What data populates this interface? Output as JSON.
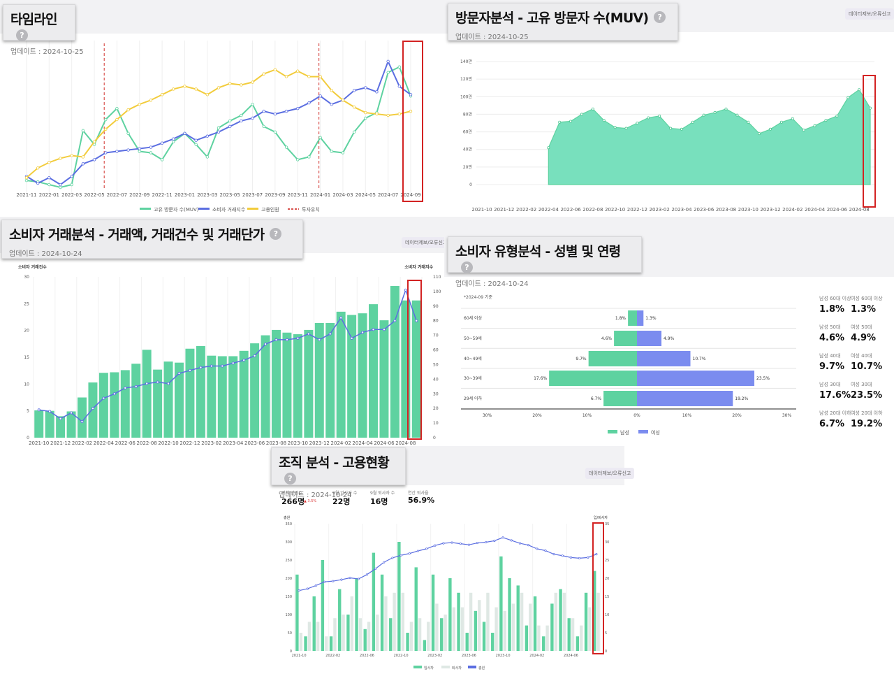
{
  "report_label": "데이터제보/오류신고",
  "timeline": {
    "title": "타임라인",
    "updated": "업데이트 : 2024-10-25",
    "x_labels": [
      "2021-11",
      "2022-01",
      "2022-03",
      "2022-05",
      "2022-07",
      "2022-09",
      "2022-11",
      "2023-01",
      "2023-03",
      "2023-05",
      "2023-07",
      "2023-09",
      "2023-11",
      "2024-01",
      "2024-03",
      "2024-05",
      "2024-07",
      "2024-09"
    ],
    "legend": [
      "고유 방문자 수(MUV)",
      "소비자 거래지수",
      "고용인원",
      "투자유치"
    ],
    "colors": {
      "muv": "#5ed2a0",
      "tx": "#5b6ee1",
      "emp": "#f2cc3c",
      "inv": "#d9534f"
    }
  },
  "muv": {
    "title": "방문자분석 - 고유 방문자 수(MUV)",
    "updated": "업데이트 : 2024-10-25",
    "y_labels": [
      "0",
      "20만",
      "40만",
      "60만",
      "80만",
      "100만",
      "120만",
      "140만"
    ],
    "x_labels": [
      "2021-10",
      "2021-12",
      "2022-02",
      "2022-04",
      "2022-06",
      "2022-08",
      "2022-10",
      "2022-12",
      "2023-02",
      "2023-04",
      "2023-06",
      "2023-08",
      "2023-10",
      "2023-12",
      "2024-02",
      "2024-04",
      "2024-06",
      "2024-08"
    ]
  },
  "consumer": {
    "title": "소비자 거래분석 - 거래액, 거래건수 및 거래단가",
    "updated": "업데이트 : 2024-10-24",
    "left_axis_title": "소비자 거래건수",
    "right_axis_title": "소비자 거래지수",
    "y_left": [
      "0",
      "5",
      "10",
      "15",
      "20",
      "25",
      "30"
    ],
    "y_right": [
      "0",
      "10",
      "20",
      "30",
      "40",
      "50",
      "60",
      "70",
      "80",
      "90",
      "100",
      "110"
    ],
    "x_labels": [
      "2021-10",
      "2021-12",
      "2022-02",
      "2022-04",
      "2022-06",
      "2022-08",
      "2022-10",
      "2022-12",
      "2023-02",
      "2023-04",
      "2023-06",
      "2023-08",
      "2023-10",
      "2023-12",
      "2024-02",
      "2024-04",
      "2024-06",
      "2024-08"
    ]
  },
  "demo": {
    "title": "소비자 유형분석 - 성별 및 연령",
    "updated": "업데이트 : 2024-10-24",
    "basis": "*2024-09 기준",
    "x_labels": [
      "30%",
      "20%",
      "10%",
      "0%",
      "10%",
      "20%",
      "30%"
    ],
    "legend": [
      "남성",
      "여성"
    ],
    "summary": [
      {
        "m_label": "남성 60대 이상",
        "m_val": "1.8%",
        "f_label": "여성 60대 이상",
        "f_val": "1.3%"
      },
      {
        "m_label": "남성 50대",
        "m_val": "4.6%",
        "f_label": "여성 50대",
        "f_val": "4.9%"
      },
      {
        "m_label": "남성 40대",
        "m_val": "9.7%",
        "f_label": "여성 40대",
        "f_val": "10.7%"
      },
      {
        "m_label": "남성 30대",
        "m_val": "17.6%",
        "f_label": "여성 30대",
        "f_val": "23.5%"
      },
      {
        "m_label": "남성 20대 이하",
        "m_val": "6.7%",
        "f_label": "여성 20대 이하",
        "f_val": "19.2%"
      }
    ]
  },
  "org": {
    "title": "조직 분석 - 고용현황",
    "updated": "업데이트 : 2024-10-24",
    "kpis": [
      {
        "label": "전체 인원수",
        "value": "266명",
        "delta": "▲ 3.5%"
      },
      {
        "label": "9월 입사자 수",
        "value": "22명",
        "delta": ""
      },
      {
        "label": "9월 퇴사자 수",
        "value": "16명",
        "delta": ""
      },
      {
        "label": "연간 퇴사율",
        "value": "56.9%",
        "delta": ""
      }
    ],
    "left_axis_title": "총원",
    "right_axis_title": "입/퇴사자",
    "y_left": [
      "0",
      "50",
      "100",
      "150",
      "200",
      "250",
      "300",
      "350"
    ],
    "y_right": [
      "0",
      "5",
      "10",
      "15",
      "20",
      "25",
      "30",
      "35"
    ],
    "x_labels": [
      "2021-10",
      "2022-02",
      "2022-06",
      "2022-10",
      "2023-02",
      "2023-06",
      "2023-10",
      "2024-02",
      "2024-06"
    ],
    "legend": [
      "입사자",
      "퇴사자",
      "총원"
    ]
  },
  "chart_data": [
    {
      "type": "line",
      "title": "타임라인",
      "categories": [
        "2021-11",
        "2021-12",
        "2022-01",
        "2022-02",
        "2022-03",
        "2022-04",
        "2022-05",
        "2022-06",
        "2022-07",
        "2022-08",
        "2022-09",
        "2022-10",
        "2022-11",
        "2022-12",
        "2023-01",
        "2023-02",
        "2023-03",
        "2023-04",
        "2023-05",
        "2023-06",
        "2023-07",
        "2023-08",
        "2023-09",
        "2023-10",
        "2023-11",
        "2023-12",
        "2024-01",
        "2024-02",
        "2024-03",
        "2024-04",
        "2024-05",
        "2024-06",
        "2024-07",
        "2024-08",
        "2024-09"
      ],
      "series": [
        {
          "name": "고유 방문자 수(MUV)",
          "values": [
            0.05,
            0.04,
            0.02,
            0.0,
            0.02,
            0.41,
            0.31,
            0.49,
            0.57,
            0.39,
            0.26,
            0.25,
            0.2,
            0.33,
            0.39,
            0.31,
            0.22,
            0.43,
            0.48,
            0.52,
            0.6,
            0.44,
            0.4,
            0.29,
            0.2,
            0.22,
            0.36,
            0.26,
            0.25,
            0.4,
            0.5,
            0.54,
            0.83,
            0.87,
            0.66
          ]
        },
        {
          "name": "소비자 거래지수",
          "values": [
            0.08,
            0.03,
            0.07,
            0.02,
            0.08,
            0.17,
            0.2,
            0.25,
            0.26,
            0.27,
            0.28,
            0.29,
            0.32,
            0.35,
            0.39,
            0.34,
            0.37,
            0.4,
            0.44,
            0.48,
            0.5,
            0.55,
            0.53,
            0.55,
            0.57,
            0.61,
            0.66,
            0.6,
            0.63,
            0.7,
            0.72,
            0.69,
            0.91,
            0.73,
            0.67
          ]
        },
        {
          "name": "고용인원",
          "values": [
            0.07,
            0.14,
            0.18,
            0.21,
            0.23,
            0.22,
            0.33,
            0.42,
            0.49,
            0.56,
            0.6,
            0.63,
            0.67,
            0.71,
            0.73,
            0.71,
            0.67,
            0.72,
            0.75,
            0.74,
            0.76,
            0.82,
            0.85,
            0.8,
            0.84,
            0.8,
            0.8,
            0.7,
            0.63,
            0.58,
            0.54,
            0.53,
            0.52,
            0.53,
            0.55
          ]
        }
      ],
      "annotations": [
        {
          "label": "투자유치",
          "x": "2022-06"
        },
        {
          "label": "투자유치",
          "x": "2024-01"
        }
      ],
      "xlabel": "",
      "ylabel": ""
    },
    {
      "type": "area",
      "title": "방문자분석 - 고유 방문자 수(MUV)",
      "categories": [
        "2021-10",
        "2021-11",
        "2021-12",
        "2022-01",
        "2022-02",
        "2022-03",
        "2022-04",
        "2022-05",
        "2022-06",
        "2022-07",
        "2022-08",
        "2022-09",
        "2022-10",
        "2022-11",
        "2022-12",
        "2023-01",
        "2023-02",
        "2023-03",
        "2023-04",
        "2023-05",
        "2023-06",
        "2023-07",
        "2023-08",
        "2023-09",
        "2023-10",
        "2023-11",
        "2023-12",
        "2024-01",
        "2024-02",
        "2024-03",
        "2024-04",
        "2024-05",
        "2024-06",
        "2024-07",
        "2024-08",
        "2024-09"
      ],
      "values": [
        null,
        null,
        null,
        null,
        null,
        null,
        42,
        71,
        72,
        80,
        86,
        73,
        65,
        64,
        70,
        76,
        78,
        64,
        63,
        71,
        79,
        82,
        86,
        79,
        71,
        58,
        63,
        71,
        75,
        62,
        67,
        73,
        78,
        99,
        108,
        87
      ],
      "unit": "만",
      "ylim": [
        0,
        140
      ],
      "xlabel": "",
      "ylabel": ""
    },
    {
      "type": "bar",
      "title": "소비자 거래분석 - 거래액, 거래건수 및 거래단가",
      "categories": [
        "2021-10",
        "2021-11",
        "2021-12",
        "2022-01",
        "2022-02",
        "2022-03",
        "2022-04",
        "2022-05",
        "2022-06",
        "2022-07",
        "2022-08",
        "2022-09",
        "2022-10",
        "2022-11",
        "2022-12",
        "2023-01",
        "2023-02",
        "2023-03",
        "2023-04",
        "2023-05",
        "2023-06",
        "2023-07",
        "2023-08",
        "2023-09",
        "2023-10",
        "2023-11",
        "2023-12",
        "2024-01",
        "2024-02",
        "2024-03",
        "2024-04",
        "2024-05",
        "2024-06",
        "2024-07",
        "2024-08",
        "2024-09"
      ],
      "series": [
        {
          "name": "소비자 거래건수",
          "axis": "left",
          "values": [
            5.1,
            5.0,
            4.0,
            4.9,
            7.5,
            10.3,
            12.1,
            12.2,
            12.6,
            13.8,
            16.4,
            12.7,
            14.2,
            14.0,
            16.6,
            17.1,
            15.3,
            15.2,
            15.2,
            16.2,
            17.6,
            19.1,
            20.1,
            19.6,
            19.3,
            20.1,
            21.4,
            21.4,
            23.5,
            22.9,
            23.2,
            24.9,
            21.9,
            28.3,
            25.6,
            25.6
          ]
        },
        {
          "name": "소비자 거래지수",
          "axis": "right",
          "values": [
            19,
            18,
            13,
            17,
            11,
            20,
            27,
            30,
            34,
            35,
            37,
            38,
            37,
            44,
            46,
            48,
            49,
            49,
            51,
            53,
            56,
            64,
            67,
            67,
            68,
            71,
            67,
            71,
            82,
            68,
            72,
            74,
            74,
            80,
            101,
            80
          ]
        }
      ],
      "ylim": [
        0,
        30
      ],
      "ylim_right": [
        0,
        110
      ]
    },
    {
      "type": "bar",
      "title": "소비자 유형분석 - 성별 및 연령",
      "orientation": "horizontal",
      "categories": [
        "60세 이상",
        "50~59세",
        "40~49세",
        "30~39세",
        "29세 이하"
      ],
      "series": [
        {
          "name": "남성",
          "values": [
            1.8,
            4.6,
            9.7,
            17.6,
            6.7
          ]
        },
        {
          "name": "여성",
          "values": [
            1.3,
            4.9,
            10.7,
            23.5,
            19.2
          ]
        }
      ],
      "unit": "%",
      "xlim": [
        -30,
        30
      ]
    },
    {
      "type": "bar",
      "title": "조직 분석 - 고용현황",
      "categories": [
        "2021-10",
        "2021-11",
        "2021-12",
        "2022-01",
        "2022-02",
        "2022-03",
        "2022-04",
        "2022-05",
        "2022-06",
        "2022-07",
        "2022-08",
        "2022-09",
        "2022-10",
        "2022-11",
        "2022-12",
        "2023-01",
        "2023-02",
        "2023-03",
        "2023-04",
        "2023-05",
        "2023-06",
        "2023-07",
        "2023-08",
        "2023-09",
        "2023-10",
        "2023-11",
        "2023-12",
        "2024-01",
        "2024-02",
        "2024-03",
        "2024-04",
        "2024-05",
        "2024-06",
        "2024-07",
        "2024-08",
        "2024-09"
      ],
      "series": [
        {
          "name": "입사자",
          "axis": "right",
          "values": [
            21,
            4,
            15,
            25,
            4,
            17,
            10,
            20,
            6,
            27,
            21,
            9,
            30,
            5,
            23,
            3,
            21,
            9,
            20,
            16,
            5,
            11,
            8,
            5,
            26,
            20,
            18,
            7,
            15,
            4,
            13,
            17,
            9,
            4,
            16,
            22
          ]
        },
        {
          "name": "퇴사자",
          "axis": "right",
          "values": [
            5,
            8,
            8,
            4,
            9,
            10,
            15,
            9,
            8,
            10,
            15,
            16,
            16,
            8,
            9,
            8,
            13,
            10,
            12,
            12,
            16,
            14,
            16,
            12,
            11,
            13,
            16,
            13,
            7,
            7,
            16,
            16,
            9,
            7,
            12,
            16
          ]
        },
        {
          "name": "총원",
          "axis": "left",
          "values": [
            166,
            171,
            180,
            190,
            192,
            196,
            201,
            198,
            210,
            226,
            244,
            256,
            263,
            268,
            275,
            281,
            290,
            296,
            298,
            295,
            292,
            297,
            299,
            303,
            312,
            304,
            296,
            291,
            281,
            276,
            266,
            262,
            257,
            255,
            257,
            266
          ]
        }
      ],
      "ylim": [
        0,
        350
      ],
      "ylim_right": [
        0,
        35
      ]
    }
  ]
}
